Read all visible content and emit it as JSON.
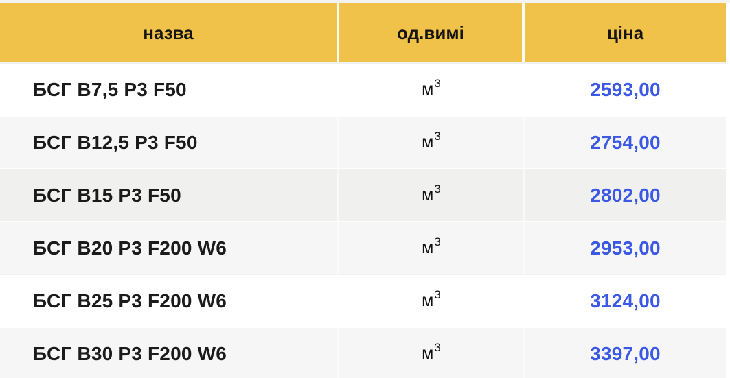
{
  "table": {
    "columns": [
      {
        "key": "name",
        "label": "назва"
      },
      {
        "key": "unit",
        "label": "од.вимі"
      },
      {
        "key": "price",
        "label": "ціна"
      }
    ],
    "unit": {
      "base": "м",
      "sup": "3",
      "full": "м³"
    },
    "rows": [
      {
        "name": "БСГ В7,5 Р3 F50",
        "unit": "м³",
        "price": "2593,00"
      },
      {
        "name": "БСГ В12,5 Р3 F50",
        "unit": "м³",
        "price": "2754,00"
      },
      {
        "name": "БСГ В15 Р3 F50",
        "unit": "м³",
        "price": "2802,00"
      },
      {
        "name": "БСГ В20 Р3 F200 W6",
        "unit": "м³",
        "price": "2953,00"
      },
      {
        "name": "БСГ В25 Р3 F200 W6",
        "unit": "м³",
        "price": "3124,00"
      },
      {
        "name": "БСГ В30 Р3 F200 W6",
        "unit": "м³",
        "price": "3397,00"
      }
    ],
    "colors": {
      "header_bg": "#F0C24A",
      "price_text": "#3B59E3",
      "row_alt_bg": "#F5F6F5",
      "row_hover_bg": "#F0F1EF"
    }
  }
}
